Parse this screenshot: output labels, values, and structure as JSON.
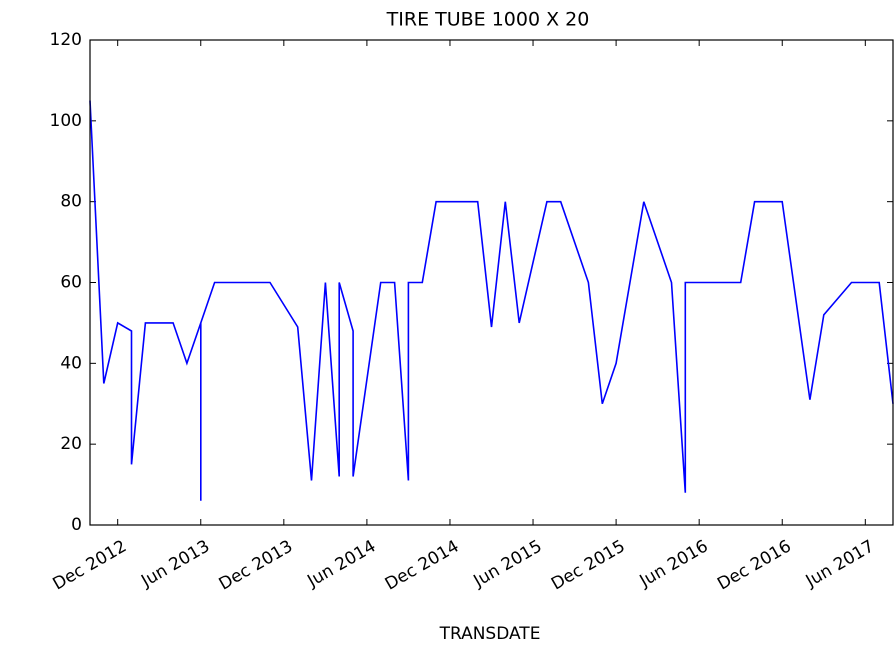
{
  "chart_data": {
    "type": "line",
    "title": "TIRE TUBE 1000 X 20",
    "x_label": "TRANSDATE",
    "x": [
      "Oct 2012",
      "Nov 2012",
      "Dec 2012",
      "Jan 2013",
      "Jan 2013",
      "Feb 2013",
      "Apr 2013",
      "May 2013",
      "Jun 2013",
      "Jun 2013",
      "Jun 2013",
      "Jul 2013",
      "Nov 2013",
      "Jan 2014",
      "Feb 2014",
      "Mar 2014",
      "Apr 2014",
      "Apr 2014",
      "May 2014",
      "May 2014",
      "Jul 2014",
      "Aug 2014",
      "Sep 2014",
      "Sep 2014",
      "Oct 2014",
      "Nov 2014",
      "Feb 2015",
      "Mar 2015",
      "Apr 2015",
      "May 2015",
      "Jul 2015",
      "Aug 2015",
      "Oct 2015",
      "Nov 2015",
      "Dec 2015",
      "Feb 2016",
      "Apr 2016",
      "May 2016",
      "May 2016",
      "Sep 2016",
      "Oct 2016",
      "Dec 2016",
      "Feb 2017",
      "Mar 2017",
      "May 2017",
      "Jul 2017",
      "Aug 2017"
    ],
    "series": [
      {
        "name": "TIRE TUBE 1000 X 20",
        "color": "#0000ff",
        "values": [
          105,
          35,
          50,
          48,
          15,
          50,
          50,
          40,
          50,
          6,
          50,
          60,
          60,
          49,
          11,
          60,
          12,
          60,
          48,
          12,
          60,
          60,
          11,
          60,
          60,
          80,
          80,
          49,
          80,
          50,
          80,
          80,
          60,
          30,
          40,
          80,
          60,
          8,
          60,
          60,
          80,
          80,
          31,
          52,
          60,
          60,
          30
        ]
      }
    ],
    "xlim": [
      "Oct 2012",
      "Aug 2017"
    ],
    "xticks": [
      "Dec 2012",
      "Jun 2013",
      "Dec 2013",
      "Jun 2014",
      "Dec 2014",
      "Jun 2015",
      "Dec 2015",
      "Jun 2016",
      "Dec 2016",
      "Jun 2017"
    ],
    "ylim": [
      0,
      120
    ],
    "yticks": [
      0,
      20,
      40,
      60,
      80,
      100,
      120
    ]
  }
}
